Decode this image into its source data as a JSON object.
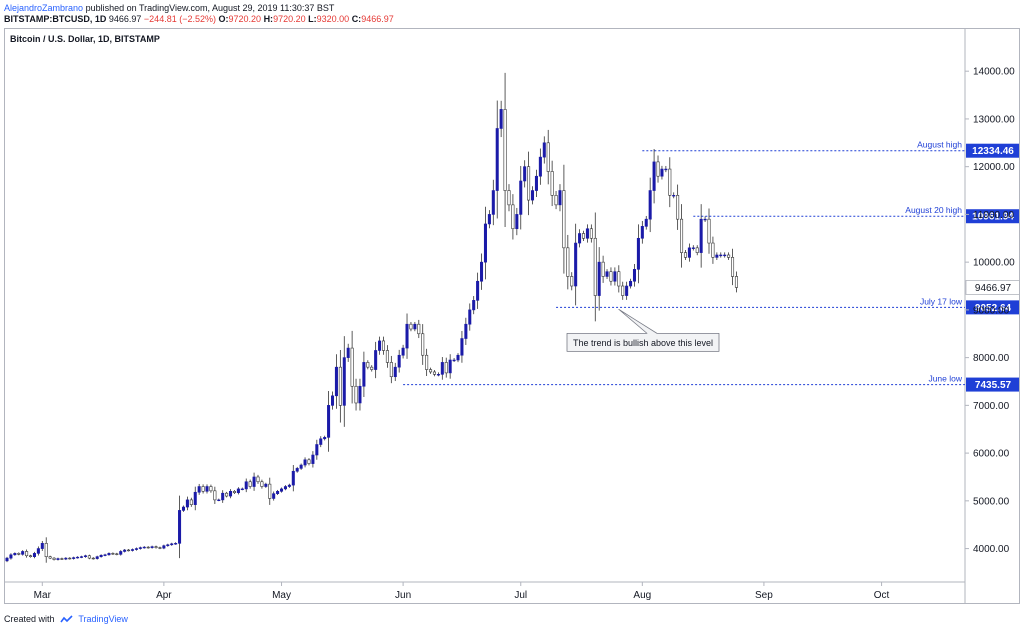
{
  "header": {
    "author": "AlejandroZambrano",
    "published": "published on TradingView.com, August 29, 2019 11:30:37 BST",
    "symbol": "BITSTAMP:BTCUSD, 1D",
    "last": "9466.97",
    "change": "−244.81 (−2.52%)",
    "open_label": "O:",
    "open": "9720.20",
    "high_label": "H:",
    "high": "9720.20",
    "low_label": "L:",
    "low": "9320.00",
    "close_label": "C:",
    "close": "9466.97"
  },
  "footer": {
    "created_with": "Created with",
    "brand": "TradingView"
  },
  "colors": {
    "up_candle": "#1a1aa8",
    "down_candle": "#ffffff",
    "candle_outline": "#333333",
    "level_line": "#1f3fd6",
    "level_label_bg": "#1f3fd6",
    "price_label_bg": "#ffffff"
  },
  "chart_data": {
    "type": "candlestick",
    "title": "Bitcoin / U.S. Dollar, 1D, BITSTAMP",
    "x_labels": [
      "Mar",
      "Apr",
      "May",
      "Jun",
      "Jul",
      "Aug",
      "Sep",
      "Oct"
    ],
    "x_dates": [
      "2019-03-01",
      "2019-04-01",
      "2019-05-01",
      "2019-06-01",
      "2019-07-01",
      "2019-08-01",
      "2019-09-01",
      "2019-10-01"
    ],
    "x_range": [
      "2019-02-20",
      "2019-10-21"
    ],
    "y_ticks": [
      4000,
      5000,
      6000,
      7000,
      8000,
      9000,
      10000,
      11000,
      12000,
      13000,
      14000
    ],
    "y_tick_labels": [
      "4000.00",
      "5000.00",
      "6000.00",
      "7000.00",
      "8000.00",
      "9000.00",
      "10000.00",
      "11000.00",
      "12000.00",
      "13000.00",
      "14000.00"
    ],
    "ylim": [
      3300,
      14800
    ],
    "grid": false,
    "series": [
      {
        "start": "2019-02-20",
        "closes": [
          3800,
          3870,
          3900,
          3880,
          3940,
          3850,
          3830,
          3900,
          4000,
          4110,
          3830,
          3800,
          3770,
          3790,
          3780,
          3800,
          3790,
          3810,
          3820,
          3830,
          3850,
          3800,
          3790,
          3830,
          3860,
          3870,
          3900,
          3890,
          3880,
          3940,
          3970,
          3960,
          3980,
          4000,
          4020,
          4030,
          4020,
          4040,
          4020,
          4010,
          4060,
          4080,
          4100,
          4110,
          4800,
          4870,
          5020,
          4920,
          5180,
          5300,
          5200,
          5300,
          5210,
          5020,
          5020,
          5160,
          5100,
          5200,
          5170,
          5250,
          5250,
          5400,
          5300,
          5500,
          5400,
          5300,
          5350,
          5050,
          5150,
          5200,
          5250,
          5300,
          5330,
          5620,
          5680,
          5750,
          5860,
          5780,
          5960,
          6180,
          6300,
          6330,
          7000,
          7200,
          7800,
          7000,
          8000,
          8200,
          7400,
          7050,
          7400,
          7900,
          7800,
          7750,
          8150,
          8350,
          8150,
          7900,
          7600,
          7800,
          8050,
          8200,
          8700,
          8600,
          8700,
          8500,
          8050,
          7750,
          7700,
          7650,
          7650,
          7900,
          7680,
          7950,
          7950,
          8050,
          8400,
          8700,
          9000,
          9200,
          9600,
          10000,
          10800,
          11000,
          11500,
          12800,
          13200,
          11500,
          11200,
          10700,
          11000,
          11700,
          12000,
          11300,
          11500,
          11800,
          12200,
          12500,
          11900,
          11400,
          11200,
          11500,
          10300,
          9700,
          9500,
          10400,
          10600,
          10500,
          10700,
          10500,
          9300,
          10000,
          9700,
          9800,
          9600,
          9800,
          9500,
          9300,
          9500,
          9600,
          9850,
          10500,
          10750,
          10900,
          11500,
          12100,
          11800,
          11950,
          11950,
          11400,
          11400,
          10900,
          10200,
          10100,
          10300,
          10300,
          10200,
          10900,
          10900,
          10400,
          10100,
          10150,
          10150,
          10150,
          10100,
          9700,
          9470
        ]
      }
    ],
    "levels": [
      {
        "label": "August high",
        "value": 12334.46,
        "price_tag": "12334.46",
        "from": "2019-08-01"
      },
      {
        "label": "August 20 high",
        "value": 10961.94,
        "price_tag": "10961.94",
        "from": "2019-08-14"
      },
      {
        "label": "July 17 low",
        "value": 9052.64,
        "price_tag": "9052.64",
        "from": "2019-07-10"
      },
      {
        "label": "June low",
        "value": 7435.57,
        "price_tag": "7435.57",
        "from": "2019-06-01"
      }
    ],
    "last_price_tag": "9466.97",
    "annotation": {
      "text": "The trend is bullish above this level",
      "anchor_date": "2019-07-26",
      "anchor_value": 9052.64
    }
  }
}
